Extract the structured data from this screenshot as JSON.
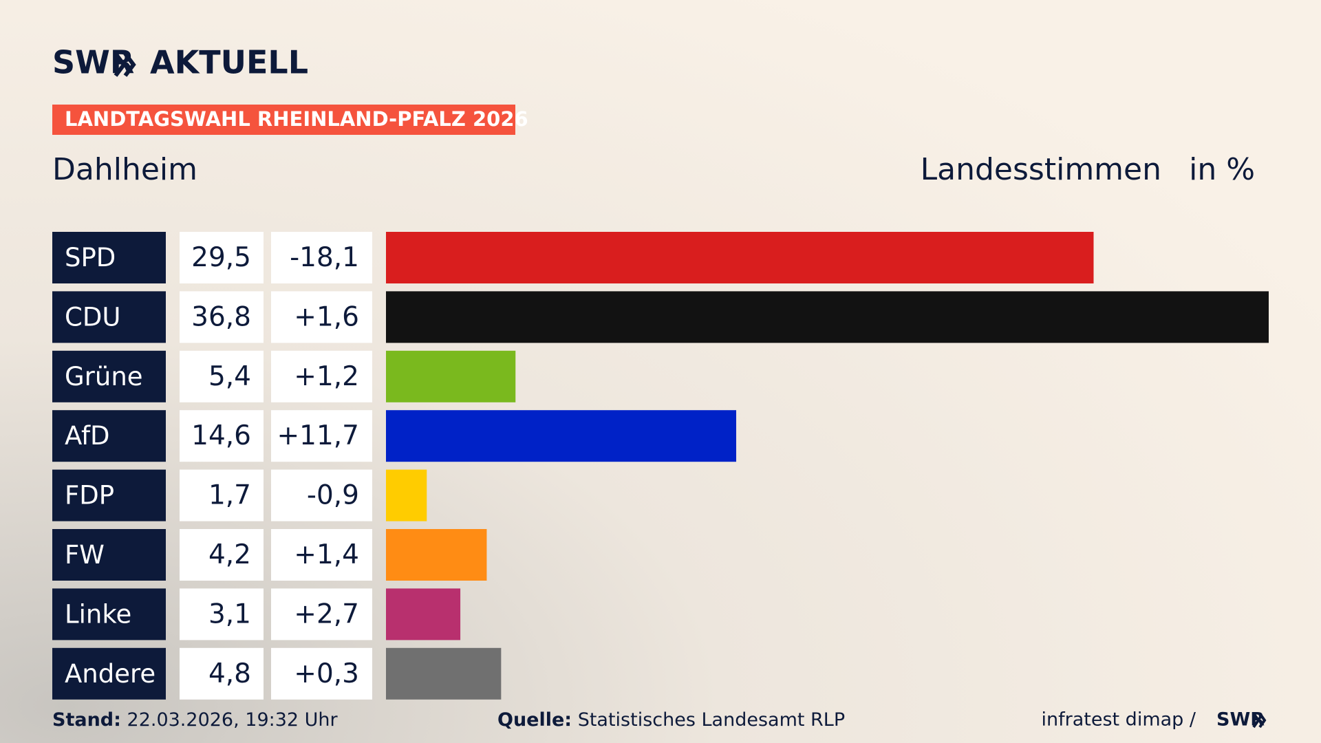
{
  "header": {
    "brand": "SWR",
    "product": "AKTUELL",
    "badge": "LANDTAGSWAHL RHEINLAND-PFALZ 2026"
  },
  "chart_data": {
    "type": "bar",
    "title": "Dahlheim",
    "subtitle": "Landesstimmen",
    "unit": "in %",
    "categories": [
      "SPD",
      "CDU",
      "Grüne",
      "AfD",
      "FDP",
      "FW",
      "Linke",
      "Andere"
    ],
    "values": [
      29.5,
      36.8,
      5.4,
      14.6,
      1.7,
      4.2,
      3.1,
      4.8
    ],
    "value_labels": [
      "29,5",
      "36,8",
      "5,4",
      "14,6",
      "1,7",
      "4,2",
      "3,1",
      "4,8"
    ],
    "changes": [
      -18.1,
      1.6,
      1.2,
      11.7,
      -0.9,
      1.4,
      2.7,
      0.3
    ],
    "change_labels": [
      "-18,1",
      "+1,6",
      "+1,2",
      "+11,7",
      "-0,9",
      "+1,4",
      "+2,7",
      "+0,3"
    ],
    "colors": [
      "#d91e1e",
      "#121212",
      "#7ab91e",
      "#0022c7",
      "#ffcc00",
      "#ff8c14",
      "#b8306e",
      "#707070"
    ]
  },
  "footer": {
    "stand_label": "Stand:",
    "stand": "22.03.2026, 19:32 Uhr",
    "source_label": "Quelle:",
    "source": "Statistisches Landesamt RLP",
    "credit": "infratest dimap /",
    "brand": "SWR"
  }
}
